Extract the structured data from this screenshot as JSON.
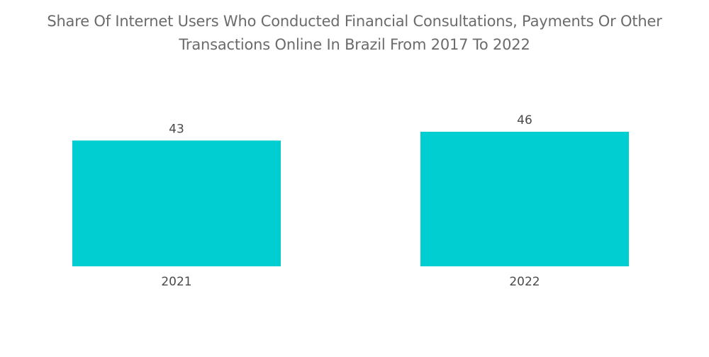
{
  "chart_data": {
    "type": "bar",
    "title": "Share Of Internet Users Who Conducted Financial Consultations, Payments Or Other Transactions Online In Brazil From 2017 To 2022",
    "title_lines": [
      "Share Of Internet Users Who Conducted Financial Consultations, Payments Or Other",
      "Transactions Online In Brazil From 2017 To 2022"
    ],
    "categories": [
      "2021",
      "2022"
    ],
    "values": [
      43,
      46
    ],
    "value_labels": [
      "43",
      "46"
    ],
    "xlabel": "",
    "ylabel": "",
    "ylim": [
      0,
      46
    ],
    "grid": false,
    "legend": "none",
    "bar_color": "#00CED1"
  }
}
